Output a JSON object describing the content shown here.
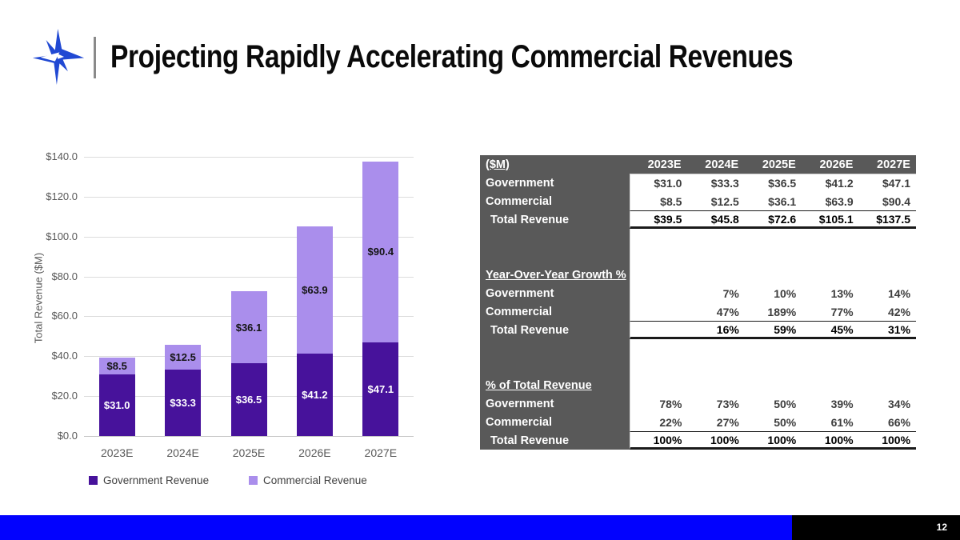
{
  "slide": {
    "title": "Projecting Rapidly Accelerating Commercial Revenues",
    "page_number": "12"
  },
  "colors": {
    "government": "#47129B",
    "commercial": "#AA8EEC",
    "logo_blue": "#2149D3",
    "footer_blue": "#0202FE",
    "table_gray": "#595959"
  },
  "chart_data": {
    "type": "bar",
    "stacked": true,
    "title": "",
    "xlabel": "",
    "ylabel": "Total Revenue ($M)",
    "ylim": [
      0,
      140
    ],
    "ytick_step": 20,
    "yticks": [
      "$0.0",
      "$20.0",
      "$40.0",
      "$60.0",
      "$80.0",
      "$100.0",
      "$120.0",
      "$140.0"
    ],
    "grid": true,
    "legend_position": "bottom",
    "categories": [
      "2023E",
      "2024E",
      "2025E",
      "2026E",
      "2027E"
    ],
    "series": [
      {
        "name": "Government Revenue",
        "values": [
          31.0,
          33.3,
          36.5,
          41.2,
          47.1
        ],
        "color": "#47129B",
        "label_color": "#ffffff"
      },
      {
        "name": "Commercial Revenue",
        "values": [
          8.5,
          12.5,
          36.1,
          63.9,
          90.4
        ],
        "color": "#AA8EEC",
        "label_color": "#141414"
      }
    ],
    "labels": [
      [
        "$31.0",
        "$33.3",
        "$36.5",
        "$41.2",
        "$47.1"
      ],
      [
        "$8.5",
        "$12.5",
        "$36.1",
        "$63.9",
        "$90.4"
      ]
    ],
    "totals": [
      39.5,
      45.8,
      72.6,
      105.1,
      137.5
    ]
  },
  "table": {
    "header": [
      "($M)",
      "2023E",
      "2024E",
      "2025E",
      "2026E",
      "2027E"
    ],
    "rows": [
      {
        "label": "Government",
        "values": [
          "$31.0",
          "$33.3",
          "$36.5",
          "$41.2",
          "$47.1"
        ],
        "style": "normal"
      },
      {
        "label": "Commercial",
        "values": [
          "$8.5",
          "$12.5",
          "$36.1",
          "$63.9",
          "$90.4"
        ],
        "style": "normal"
      },
      {
        "label": "Total Revenue",
        "values": [
          "$39.5",
          "$45.8",
          "$72.6",
          "$105.1",
          "$137.5"
        ],
        "style": "total"
      },
      {
        "label": "",
        "values": [
          "",
          "",
          "",
          "",
          ""
        ],
        "style": "spacer"
      },
      {
        "label": "",
        "values": [
          "",
          "",
          "",
          "",
          ""
        ],
        "style": "spacer"
      },
      {
        "label": "Year-Over-Year  Growth %",
        "values": [
          "",
          "",
          "",
          "",
          ""
        ],
        "style": "section"
      },
      {
        "label": "Government",
        "values": [
          "",
          "7%",
          "10%",
          "13%",
          "14%"
        ],
        "style": "normal"
      },
      {
        "label": "Commercial",
        "values": [
          "",
          "47%",
          "189%",
          "77%",
          "42%"
        ],
        "style": "normal"
      },
      {
        "label": "Total Revenue",
        "values": [
          "",
          "16%",
          "59%",
          "45%",
          "31%"
        ],
        "style": "total"
      },
      {
        "label": "",
        "values": [
          "",
          "",
          "",
          "",
          ""
        ],
        "style": "spacer"
      },
      {
        "label": "",
        "values": [
          "",
          "",
          "",
          "",
          ""
        ],
        "style": "spacer"
      },
      {
        "label": "% of Total Revenue",
        "values": [
          "",
          "",
          "",
          "",
          ""
        ],
        "style": "section"
      },
      {
        "label": "Government",
        "values": [
          "78%",
          "73%",
          "50%",
          "39%",
          "34%"
        ],
        "style": "normal"
      },
      {
        "label": "Commercial",
        "values": [
          "22%",
          "27%",
          "50%",
          "61%",
          "66%"
        ],
        "style": "normal"
      },
      {
        "label": "Total Revenue",
        "values": [
          "100%",
          "100%",
          "100%",
          "100%",
          "100%"
        ],
        "style": "total"
      }
    ]
  }
}
